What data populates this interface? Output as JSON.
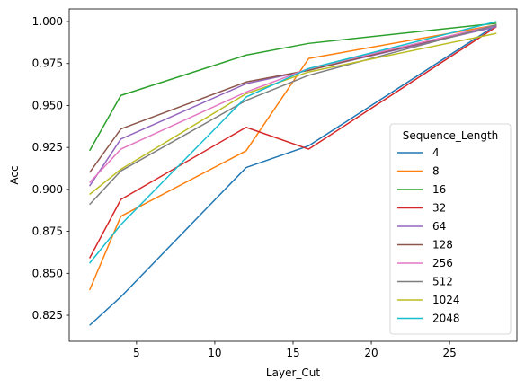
{
  "chart_data": {
    "type": "line",
    "xlabel": "Layer_Cut",
    "ylabel": "Acc",
    "xlim": [
      0.7,
      29.3
    ],
    "ylim": [
      0.8095,
      1.0075
    ],
    "x": [
      2,
      4,
      12,
      16,
      28
    ],
    "xticks": [
      5,
      10,
      15,
      20,
      25
    ],
    "yticks": [
      0.825,
      0.85,
      0.875,
      0.9,
      0.925,
      0.95,
      0.975,
      1.0
    ],
    "ytick_labels": [
      "0.825",
      "0.850",
      "0.875",
      "0.900",
      "0.925",
      "0.950",
      "0.975",
      "1.000"
    ],
    "legend": {
      "title": "Sequence_Length",
      "position": "lower-right"
    },
    "grid": false,
    "series": [
      {
        "name": "4",
        "color": "#1f77b4",
        "values": [
          0.819,
          0.836,
          0.913,
          0.926,
          0.998
        ]
      },
      {
        "name": "8",
        "color": "#ff7f0e",
        "values": [
          0.84,
          0.884,
          0.923,
          0.978,
          0.998
        ]
      },
      {
        "name": "16",
        "color": "#2ca02c",
        "values": [
          0.923,
          0.956,
          0.98,
          0.987,
          0.999
        ]
      },
      {
        "name": "32",
        "color": "#d62728",
        "values": [
          0.859,
          0.894,
          0.937,
          0.924,
          0.997
        ]
      },
      {
        "name": "64",
        "color": "#9467bd",
        "values": [
          0.902,
          0.93,
          0.963,
          0.971,
          0.997
        ]
      },
      {
        "name": "128",
        "color": "#8c564b",
        "values": [
          0.91,
          0.936,
          0.964,
          0.971,
          0.998
        ]
      },
      {
        "name": "256",
        "color": "#e377c2",
        "values": [
          0.904,
          0.924,
          0.958,
          0.972,
          0.998
        ]
      },
      {
        "name": "512",
        "color": "#7f7f7f",
        "values": [
          0.891,
          0.911,
          0.953,
          0.968,
          0.998
        ]
      },
      {
        "name": "1024",
        "color": "#bcbd22",
        "values": [
          0.897,
          0.912,
          0.957,
          0.97,
          0.993
        ]
      },
      {
        "name": "2048",
        "color": "#17becf",
        "values": [
          0.856,
          0.879,
          0.955,
          0.972,
          1.0
        ]
      }
    ]
  }
}
